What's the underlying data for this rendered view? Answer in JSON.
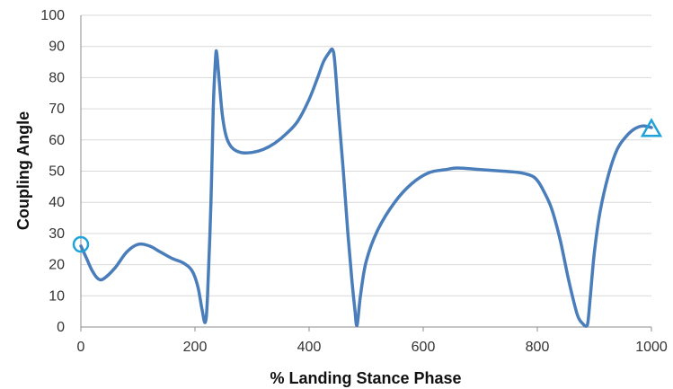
{
  "chart_data": {
    "type": "line",
    "title": "",
    "xlabel": "% Landing Stance Phase",
    "ylabel": "Coupling Angle",
    "xlim": [
      0,
      1000
    ],
    "ylim": [
      0,
      100
    ],
    "x_ticks": [
      0,
      200,
      400,
      600,
      800,
      1000
    ],
    "y_ticks": [
      0,
      10,
      20,
      30,
      40,
      50,
      60,
      70,
      80,
      90,
      100
    ],
    "grid": "horizontal",
    "legend": "none",
    "series": [
      {
        "color": "#4a7ebb",
        "x": [
          0,
          10,
          20,
          30,
          40,
          60,
          80,
          100,
          120,
          140,
          160,
          180,
          195,
          205,
          212,
          218,
          222,
          228,
          232,
          236,
          238,
          242,
          248,
          255,
          265,
          280,
          300,
          320,
          340,
          360,
          380,
          400,
          415,
          425,
          435,
          441,
          445,
          452,
          460,
          468,
          475,
          480,
          484,
          490,
          500,
          520,
          550,
          580,
          610,
          640,
          660,
          700,
          740,
          770,
          790,
          800,
          810,
          825,
          840,
          855,
          870,
          880,
          886,
          889,
          893,
          900,
          910,
          925,
          940,
          955,
          970,
          985,
          1000
        ],
        "y": [
          26,
          22,
          18,
          15.5,
          15.5,
          19,
          24,
          26.5,
          26,
          24,
          22,
          20.5,
          18,
          13,
          6,
          1.5,
          10,
          40,
          70,
          86,
          88,
          80,
          68,
          61,
          57.5,
          56,
          56,
          57,
          59,
          62,
          66,
          73,
          80,
          85,
          88,
          89,
          85,
          68,
          50,
          30,
          15,
          6,
          0.5,
          10,
          21,
          31,
          40,
          46,
          49.5,
          50.5,
          51,
          50.5,
          50,
          49.5,
          48.5,
          47,
          44,
          38,
          28,
          15,
          4,
          1,
          0.3,
          2,
          10,
          24,
          37,
          49,
          57,
          61,
          63.5,
          64.5,
          64
        ]
      }
    ],
    "markers": [
      {
        "shape": "circle",
        "x": 0,
        "y": 26.5,
        "color": "#1fa3d9"
      },
      {
        "shape": "triangle",
        "x": 1000,
        "y": 63.5,
        "color": "#1fa3d9"
      }
    ]
  }
}
